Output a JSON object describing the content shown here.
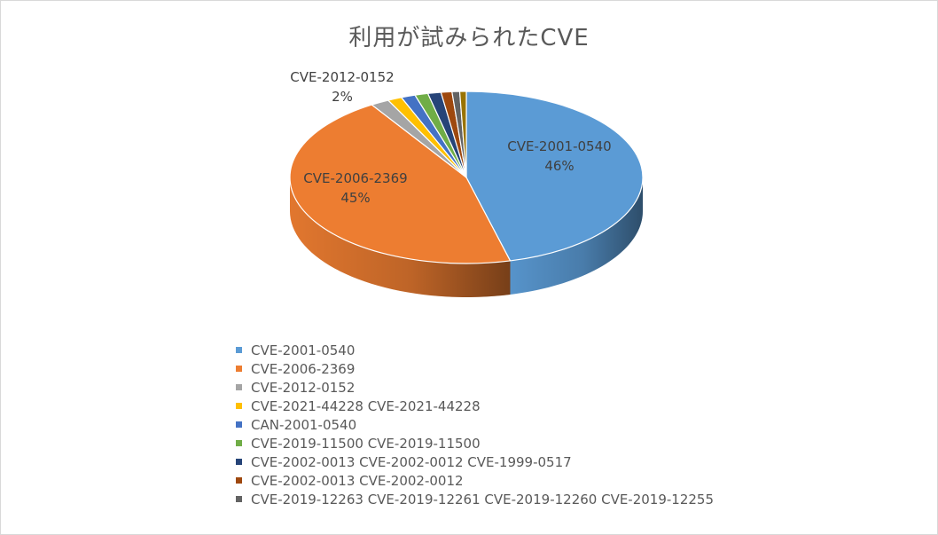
{
  "chart_data": {
    "type": "pie",
    "style": "3d",
    "title": "利用が試みられたCVE",
    "legend_position": "bottom",
    "slices": [
      {
        "label": "CVE-2001-0540",
        "value": 46,
        "color": "#5b9bd5",
        "data_label": [
          "CVE-2001-0540",
          "46%"
        ]
      },
      {
        "label": "CVE-2006-2369",
        "value": 45,
        "color": "#ed7d31",
        "data_label": [
          "CVE-2006-2369",
          "45%"
        ]
      },
      {
        "label": "CVE-2012-0152",
        "value": 1.7,
        "color": "#a5a5a5",
        "data_label": [
          "CVE-2012-0152",
          "2%"
        ]
      },
      {
        "label": "CVE-2021-44228 CVE-2021-44228",
        "value": 1.3,
        "color": "#ffc000"
      },
      {
        "label": "CAN-2001-0540",
        "value": 1.3,
        "color": "#4472c4"
      },
      {
        "label": "CVE-2019-11500 CVE-2019-11500",
        "value": 1.2,
        "color": "#70ad47"
      },
      {
        "label": "CVE-2002-0013 CVE-2002-0012 CVE-1999-0517",
        "value": 1.2,
        "color": "#264478"
      },
      {
        "label": "CVE-2002-0013 CVE-2002-0012",
        "value": 1.0,
        "color": "#9e480e"
      },
      {
        "label": "CVE-2019-12263 CVE-2019-12261 CVE-2019-12260 CVE-2019-12255",
        "value": 0.7,
        "color": "#636363"
      },
      {
        "label": "",
        "value": 0.6,
        "color": "#997300"
      }
    ]
  }
}
